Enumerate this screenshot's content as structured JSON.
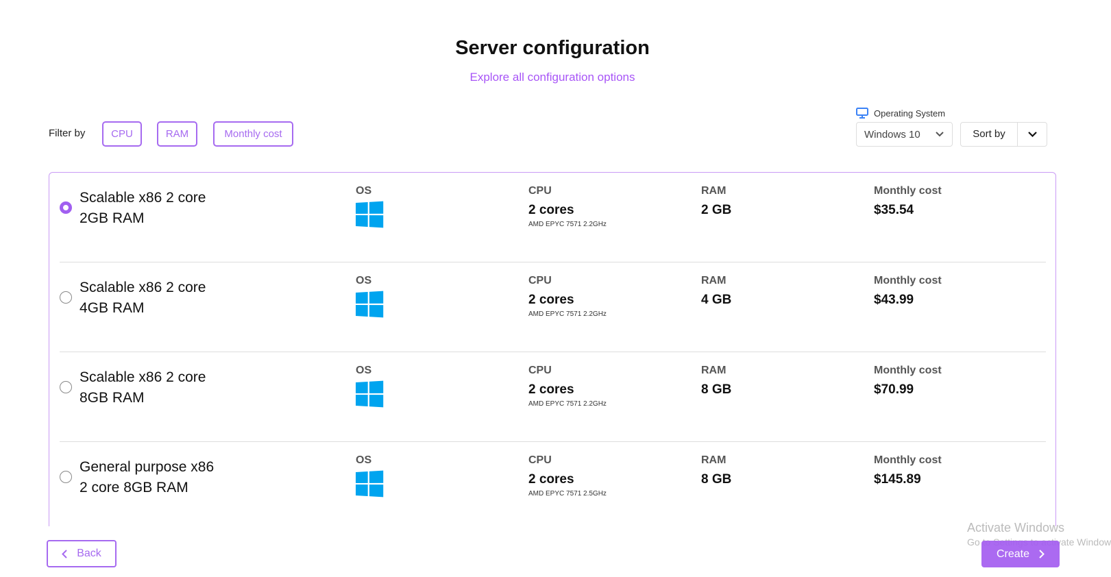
{
  "header": {
    "title": "Server configuration",
    "subtitle": "Explore all configuration options"
  },
  "filters": {
    "label": "Filter by",
    "chips": [
      "CPU",
      "RAM",
      "Monthly cost"
    ]
  },
  "os_select": {
    "label": "Operating System",
    "value": "Windows 10",
    "icon": "monitor-icon"
  },
  "sort": {
    "label": "Sort by"
  },
  "colors": {
    "accent": "#a55ff0",
    "windows": "#00a4ef"
  },
  "columns": {
    "os": "OS",
    "cpu": "CPU",
    "ram": "RAM",
    "cost": "Monthly cost"
  },
  "servers": [
    {
      "name1": "Scalable x86 2 core",
      "name2": "2GB RAM",
      "cpu": "2 cores",
      "cpu_detail": "AMD EPYC 7571 2.2GHz",
      "ram": "2 GB",
      "cost": "$35.54",
      "selected": true
    },
    {
      "name1": "Scalable x86 2 core",
      "name2": "4GB RAM",
      "cpu": "2 cores",
      "cpu_detail": "AMD EPYC 7571 2.2GHz",
      "ram": "4 GB",
      "cost": "$43.99",
      "selected": false
    },
    {
      "name1": "Scalable x86 2 core",
      "name2": "8GB RAM",
      "cpu": "2 cores",
      "cpu_detail": "AMD EPYC 7571 2.2GHz",
      "ram": "8 GB",
      "cost": "$70.99",
      "selected": false
    },
    {
      "name1": "General purpose x86",
      "name2": "2 core 8GB RAM",
      "cpu": "2 cores",
      "cpu_detail": "AMD EPYC 7571 2.5GHz",
      "ram": "8 GB",
      "cost": "$145.89",
      "selected": false
    }
  ],
  "footer": {
    "back": "Back",
    "create": "Create"
  },
  "watermark": {
    "line1": "Activate Windows",
    "line2": "Go to Settings to activate Windows."
  }
}
